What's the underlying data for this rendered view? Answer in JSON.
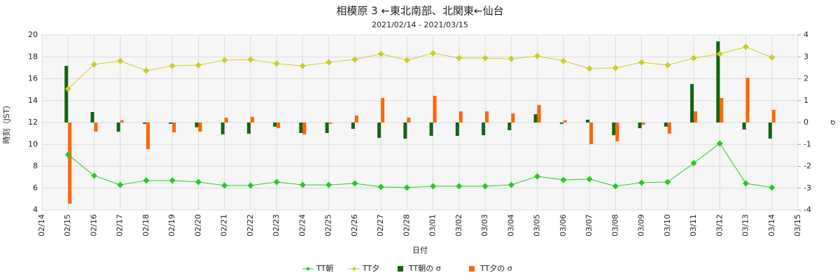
{
  "chart_data": {
    "type": "line_bar",
    "title": "相模原 3 ←東北南部、北関東←仙台",
    "subtitle": "2021/02/14 - 2021/03/15",
    "x_label": "日付",
    "y_label": "時刻（JST）",
    "y2_label": "σ",
    "categories": [
      "02/14",
      "02/15",
      "02/16",
      "02/17",
      "02/18",
      "02/19",
      "02/20",
      "02/21",
      "02/22",
      "02/23",
      "02/24",
      "02/25",
      "02/26",
      "02/27",
      "02/28",
      "03/01",
      "03/02",
      "03/03",
      "03/04",
      "03/05",
      "03/06",
      "03/07",
      "03/08",
      "03/09",
      "03/10",
      "03/11",
      "03/12",
      "03/13",
      "03/14",
      "03/15"
    ],
    "ylim": [
      4,
      20
    ],
    "yticks": [
      4,
      6,
      8,
      10,
      12,
      14,
      16,
      18,
      20
    ],
    "y2lim": [
      -4,
      4
    ],
    "y2ticks": [
      -4,
      -3,
      -2,
      -1,
      0,
      1,
      2,
      3,
      4
    ],
    "grid": true,
    "legend": "bottom",
    "series": [
      {
        "name": "TT朝",
        "kind": "line",
        "color": "#22cc22",
        "values": [
          null,
          9.06,
          7.14,
          6.3,
          6.7,
          6.7,
          6.56,
          6.24,
          6.24,
          6.56,
          6.3,
          6.3,
          6.43,
          6.11,
          6.05,
          6.18,
          6.18,
          6.18,
          6.3,
          7.07,
          6.75,
          6.82,
          6.18,
          6.5,
          6.56,
          8.29,
          10.08,
          6.43,
          6.05,
          null
        ]
      },
      {
        "name": "TT夕",
        "kind": "line",
        "color": "#cccc22",
        "values": [
          null,
          15.07,
          17.31,
          17.63,
          16.74,
          17.18,
          17.25,
          17.7,
          17.76,
          17.38,
          17.18,
          17.5,
          17.76,
          18.27,
          17.7,
          18.34,
          17.89,
          17.89,
          17.82,
          18.08,
          17.63,
          16.93,
          16.99,
          17.5,
          17.25,
          17.89,
          18.27,
          18.91,
          17.95,
          null
        ]
      },
      {
        "name": "TT朝の σ",
        "kind": "bar",
        "axis": "y2",
        "color": "#116611",
        "values": [
          null,
          2.59,
          0.48,
          -0.42,
          -0.06,
          -0.06,
          -0.22,
          -0.54,
          -0.51,
          -0.19,
          -0.48,
          -0.48,
          -0.29,
          -0.7,
          -0.74,
          -0.61,
          -0.61,
          -0.58,
          -0.35,
          0.38,
          -0.06,
          0.13,
          -0.58,
          -0.26,
          -0.19,
          1.76,
          3.71,
          -0.32,
          -0.74,
          null
        ]
      },
      {
        "name": "TT夕の σ",
        "kind": "bar",
        "axis": "y2",
        "color": "#ff6600",
        "values": [
          null,
          -3.71,
          -0.42,
          0.1,
          -1.22,
          -0.45,
          -0.42,
          0.22,
          0.26,
          -0.26,
          -0.54,
          -0.06,
          0.32,
          1.12,
          0.22,
          1.22,
          0.51,
          0.51,
          0.42,
          0.8,
          0.1,
          -0.99,
          -0.86,
          -0.1,
          -0.51,
          0.51,
          1.12,
          2.05,
          0.58,
          null
        ]
      }
    ]
  }
}
